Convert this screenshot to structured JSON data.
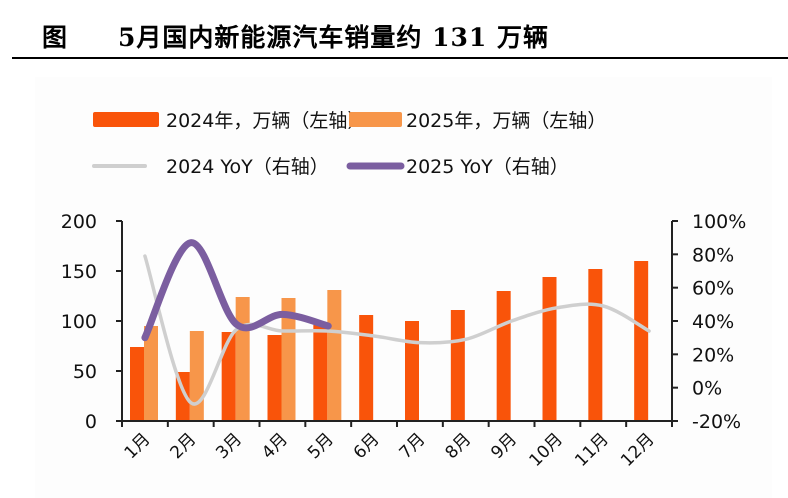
{
  "figure_label": "图",
  "title": "5月国内新能源汽车销量约 131 万辆",
  "colors": {
    "bar_2024": "#F9540A",
    "bar_2025": "#F7964A",
    "line_2024_yoy": "#CFCFCF",
    "line_2025_yoy": "#7B5EA0",
    "axis": "#222222"
  },
  "chart_data": {
    "type": "bar+line",
    "title": "5月国内新能源汽车销量约 131 万辆",
    "categories": [
      "1月",
      "2月",
      "3月",
      "4月",
      "5月",
      "6月",
      "7月",
      "8月",
      "9月",
      "10月",
      "11月",
      "12月"
    ],
    "series": [
      {
        "name": "2024年，万辆（左轴）",
        "type": "bar",
        "axis": "left",
        "values": [
          74,
          49,
          89,
          86,
          96,
          106,
          100,
          111,
          130,
          144,
          152,
          160
        ]
      },
      {
        "name": "2025年，万辆（左轴）",
        "type": "bar",
        "axis": "left",
        "values": [
          95,
          90,
          124,
          123,
          131,
          null,
          null,
          null,
          null,
          null,
          null,
          null
        ]
      },
      {
        "name": "2024 YoY（右轴）",
        "type": "line",
        "axis": "right",
        "values": [
          79,
          -9,
          35,
          34,
          34,
          31,
          27,
          29,
          40,
          48,
          49,
          34
        ]
      },
      {
        "name": "2025 YoY（右轴）",
        "type": "line",
        "axis": "right",
        "values": [
          30,
          87,
          38,
          44,
          37,
          null,
          null,
          null,
          null,
          null,
          null,
          null
        ]
      }
    ],
    "left_axis": {
      "ylim": [
        0,
        200
      ],
      "ticks": [
        "0",
        "50",
        "100",
        "150",
        "200"
      ],
      "tick_values": [
        0,
        50,
        100,
        150,
        200
      ]
    },
    "right_axis": {
      "ylim": [
        -20,
        100
      ],
      "ticks": [
        "-20%",
        "0%",
        "20%",
        "40%",
        "60%",
        "80%",
        "100%"
      ],
      "tick_values": [
        -20,
        0,
        20,
        40,
        60,
        80,
        100
      ]
    },
    "grid": false,
    "legend_position": "top"
  }
}
